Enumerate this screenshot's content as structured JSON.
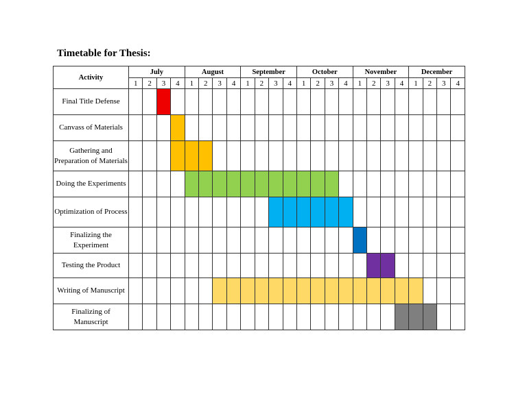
{
  "title": "Timetable for Thesis:",
  "header": {
    "activity": "Activity",
    "months": [
      "July",
      "August",
      "September",
      "October",
      "November",
      "December"
    ],
    "weeks": [
      "1",
      "2",
      "3",
      "4"
    ]
  },
  "colors": {
    "red": "#ee0000",
    "orange": "#ffc000",
    "green": "#92d050",
    "cyan": "#00b0f0",
    "blue": "#0070c0",
    "purple": "#7030a0",
    "lightyellow": "#ffd966",
    "gray": "#7f7f7f"
  },
  "activities": [
    {
      "label": "Final Title Defense",
      "start": 3,
      "end": 3,
      "color": "red"
    },
    {
      "label": "Canvass of Materials",
      "start": 4,
      "end": 4,
      "color": "orange"
    },
    {
      "label": "Gathering and Preparation of Materials",
      "start": 4,
      "end": 6,
      "color": "orange"
    },
    {
      "label": "Doing the Experiments",
      "start": 5,
      "end": 15,
      "color": "green"
    },
    {
      "label": "Optimization of Process",
      "start": 11,
      "end": 16,
      "color": "cyan"
    },
    {
      "label": "Finalizing the Experiment",
      "start": 17,
      "end": 17,
      "color": "blue"
    },
    {
      "label": "Testing the Product",
      "start": 18,
      "end": 19,
      "color": "purple"
    },
    {
      "label": "Writing of Manuscript",
      "start": 7,
      "end": 21,
      "color": "lightyellow"
    },
    {
      "label": "Finalizing of Manuscript",
      "start": 20,
      "end": 22,
      "color": "gray"
    }
  ]
}
